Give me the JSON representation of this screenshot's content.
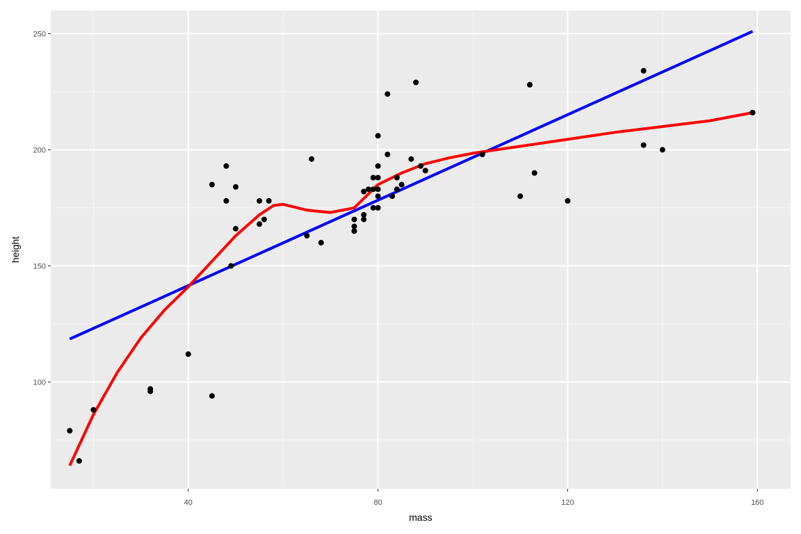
{
  "chart_data": {
    "type": "scatter",
    "title": "",
    "xlabel": "mass",
    "ylabel": "height",
    "xlim": [
      11,
      167
    ],
    "ylim": [
      54,
      260
    ],
    "x_ticks": [
      40,
      80,
      120,
      160
    ],
    "x_tick_labels": [
      "40",
      "80",
      "120",
      "160"
    ],
    "x_minor_ticks": [
      20,
      60,
      100,
      140
    ],
    "y_ticks": [
      100,
      150,
      200,
      250
    ],
    "y_tick_labels": [
      "100",
      "150",
      "200",
      "250"
    ],
    "y_minor_ticks": [
      75,
      125,
      175,
      225
    ],
    "grid": true,
    "panel_background": "#ebebeb",
    "points": {
      "color": "#000000",
      "x": [
        15,
        17,
        20,
        32,
        32,
        40,
        45,
        45,
        48,
        48,
        49,
        50,
        50,
        55,
        55,
        56,
        57,
        65,
        66,
        68,
        75,
        75,
        75,
        75,
        77,
        77,
        77,
        78,
        79,
        79,
        79,
        80,
        80,
        80,
        80,
        80,
        80,
        82,
        82,
        83,
        84,
        84,
        85,
        87,
        88,
        89,
        90,
        102,
        110,
        112,
        113,
        120,
        136,
        136,
        140,
        159
      ],
      "y": [
        79,
        66,
        88,
        96,
        97,
        112,
        94,
        185,
        178,
        193,
        150,
        166,
        184,
        168,
        178,
        170,
        178,
        163,
        196,
        160,
        165,
        167,
        170,
        165,
        170,
        172,
        182,
        183,
        175,
        183,
        188,
        175,
        180,
        183,
        188,
        193,
        206,
        198,
        224,
        180,
        183,
        188,
        185,
        196,
        229,
        193,
        191,
        198,
        180,
        228,
        190,
        178,
        202,
        234,
        200,
        216
      ]
    },
    "series": [
      {
        "type": "line",
        "color": "#0000ff",
        "x": [
          15,
          159
        ],
        "y": [
          118.5,
          251
        ]
      },
      {
        "type": "line",
        "color": "#ff0000",
        "x": [
          15,
          20,
          25,
          30,
          35,
          40,
          45,
          50,
          55,
          58,
          60,
          65,
          70,
          75,
          78,
          80,
          85,
          90,
          95,
          100,
          110,
          120,
          130,
          140,
          150,
          159
        ],
        "y": [
          64,
          86,
          104,
          119,
          131,
          141,
          152,
          163,
          172,
          176,
          176.5,
          174,
          173,
          175,
          181,
          185,
          190,
          194,
          196.5,
          198.5,
          201.5,
          204.5,
          207.5,
          210,
          212.5,
          216
        ]
      }
    ]
  }
}
